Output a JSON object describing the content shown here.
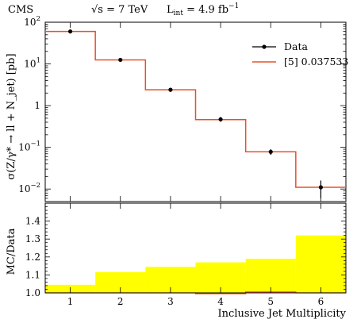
{
  "header": {
    "experiment": "CMS",
    "energy": "√s = 7 TeV",
    "luminosity": "L",
    "luminosity_sub": "int",
    "luminosity_value": " = 4.9 fb",
    "luminosity_exp": "−1"
  },
  "chart_data": [
    {
      "type": "line",
      "panel": "main",
      "ylabel": "σ(Z/γ* → ll + N_jet) [pb]",
      "yscale": "log",
      "ylim": [
        0.005,
        100
      ],
      "xlim": [
        0.5,
        6.5
      ],
      "y_ticks": [
        {
          "value": 100,
          "base": "10",
          "exp": "2"
        },
        {
          "value": 10,
          "base": "10",
          "exp": "1"
        },
        {
          "value": 1,
          "base": "1",
          "exp": ""
        },
        {
          "value": 0.1,
          "base": "10",
          "exp": "−1"
        },
        {
          "value": 0.01,
          "base": "10",
          "exp": "−2"
        }
      ],
      "legend_position": "top-right",
      "series": [
        {
          "name": "Data",
          "style": "points-with-errorbars",
          "color": "#000000",
          "x": [
            1,
            2,
            3,
            4,
            5,
            6
          ],
          "values": [
            60,
            12.5,
            2.4,
            0.47,
            0.078,
            0.011
          ],
          "err_low": [
            2.5,
            0.6,
            0.25,
            0.06,
            0.012,
            0.005
          ],
          "err_high": [
            2.5,
            0.6,
            0.25,
            0.06,
            0.012,
            0.005
          ]
        },
        {
          "name": "[5] 0.037533",
          "style": "step-histogram",
          "color": "#e8502a",
          "bin_edges": [
            0.5,
            1.5,
            2.5,
            3.5,
            4.5,
            5.5,
            6.5
          ],
          "values": [
            60,
            12.5,
            2.4,
            0.46,
            0.078,
            0.011
          ]
        }
      ]
    },
    {
      "type": "area",
      "panel": "ratio",
      "ylabel": "MC/Data",
      "xlabel": "Inclusive Jet Multiplicity",
      "ylim": [
        1.0,
        1.5
      ],
      "xlim": [
        0.5,
        6.5
      ],
      "x_ticks": [
        "1",
        "2",
        "3",
        "4",
        "5",
        "6"
      ],
      "y_ticks": [
        "1.0",
        "1.1",
        "1.2",
        "1.3",
        "1.4"
      ],
      "band_color": "#ffff00",
      "line_color": "#e8502a",
      "bin_edges": [
        0.5,
        1.5,
        2.5,
        3.5,
        4.5,
        5.5,
        6.5
      ],
      "band_high": [
        1.045,
        1.115,
        1.145,
        1.17,
        1.19,
        1.32
      ],
      "band_low": [
        1.0,
        1.0,
        1.0,
        1.0,
        1.0,
        1.0
      ],
      "ratio": [
        1.0,
        1.0,
        1.0,
        0.995,
        1.005,
        1.0
      ]
    }
  ]
}
